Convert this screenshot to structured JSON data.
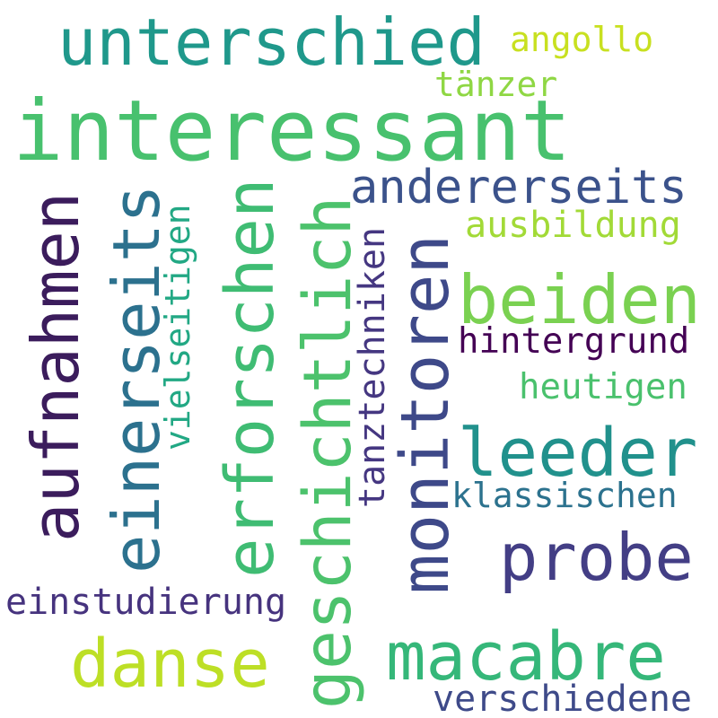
{
  "words": [
    {
      "text": "interessant",
      "color": "#48c16e"
    },
    {
      "text": "unterschied",
      "color": "#1f988b"
    },
    {
      "text": "angollo",
      "color": "#c8e020"
    },
    {
      "text": "tänzer",
      "color": "#8fd744"
    },
    {
      "text": "andererseits",
      "color": "#3b528b"
    },
    {
      "text": "ausbildung",
      "color": "#a2da37"
    },
    {
      "text": "beiden",
      "color": "#7ad151"
    },
    {
      "text": "hintergrund",
      "color": "#440154"
    },
    {
      "text": "heutigen",
      "color": "#4ac16d"
    },
    {
      "text": "leeder",
      "color": "#21918c"
    },
    {
      "text": "klassischen",
      "color": "#2c728e"
    },
    {
      "text": "probe",
      "color": "#433e85"
    },
    {
      "text": "einstudierung",
      "color": "#46337e"
    },
    {
      "text": "danse",
      "color": "#bddf26"
    },
    {
      "text": "macabre",
      "color": "#35b779"
    },
    {
      "text": "verschiedene",
      "color": "#3e4a89"
    },
    {
      "text": "aufnahmen",
      "color": "#3b1c5c"
    },
    {
      "text": "einerseits",
      "color": "#2c718e"
    },
    {
      "text": "vielseitigen",
      "color": "#22a884"
    },
    {
      "text": "erforschen",
      "color": "#3fbc73"
    },
    {
      "text": "geschichtlich",
      "color": "#4cc26c"
    },
    {
      "text": "tanztechniken",
      "color": "#453781"
    },
    {
      "text": "monitoren",
      "color": "#3e4989"
    }
  ]
}
